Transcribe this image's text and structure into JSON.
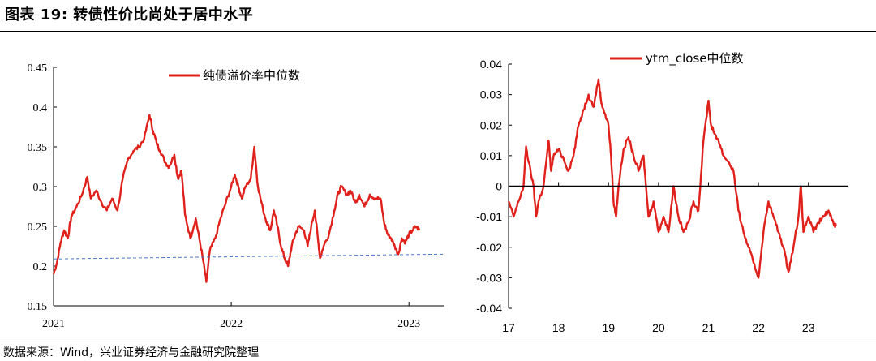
{
  "figure": {
    "title": "图表 19:  转债性价比尚处于居中水平",
    "source": "数据来源：Wind，兴业证券经济与金融研究院整理"
  },
  "chart_data": [
    {
      "type": "line",
      "title": "",
      "xlabel": "",
      "ylabel": "",
      "ylim": [
        0.15,
        0.45
      ],
      "yticks": [
        "0.15",
        "0.2",
        "0.25",
        "0.3",
        "0.35",
        "0.4",
        "0.45"
      ],
      "xlim": [
        2021.0,
        2023.2
      ],
      "xticks": [
        "2021",
        "2022",
        "2023"
      ],
      "legend": "top-right",
      "series": [
        {
          "name": "纯债溢价率中位数",
          "color": "#e0201b",
          "points": [
            [
              2021.0,
              0.19
            ],
            [
              2021.02,
              0.205
            ],
            [
              2021.04,
              0.23
            ],
            [
              2021.06,
              0.245
            ],
            [
              2021.08,
              0.235
            ],
            [
              2021.1,
              0.262
            ],
            [
              2021.13,
              0.275
            ],
            [
              2021.16,
              0.29
            ],
            [
              2021.19,
              0.312
            ],
            [
              2021.21,
              0.285
            ],
            [
              2021.24,
              0.295
            ],
            [
              2021.27,
              0.28
            ],
            [
              2021.3,
              0.27
            ],
            [
              2021.33,
              0.285
            ],
            [
              2021.36,
              0.27
            ],
            [
              2021.39,
              0.31
            ],
            [
              2021.42,
              0.335
            ],
            [
              2021.45,
              0.345
            ],
            [
              2021.48,
              0.35
            ],
            [
              2021.51,
              0.36
            ],
            [
              2021.54,
              0.39
            ],
            [
              2021.56,
              0.37
            ],
            [
              2021.58,
              0.355
            ],
            [
              2021.6,
              0.345
            ],
            [
              2021.63,
              0.33
            ],
            [
              2021.65,
              0.325
            ],
            [
              2021.68,
              0.34
            ],
            [
              2021.7,
              0.31
            ],
            [
              2021.72,
              0.32
            ],
            [
              2021.74,
              0.265
            ],
            [
              2021.77,
              0.235
            ],
            [
              2021.8,
              0.26
            ],
            [
              2021.82,
              0.235
            ],
            [
              2021.84,
              0.21
            ],
            [
              2021.86,
              0.18
            ],
            [
              2021.88,
              0.22
            ],
            [
              2021.91,
              0.235
            ],
            [
              2021.94,
              0.26
            ],
            [
              2021.97,
              0.28
            ],
            [
              2022.0,
              0.3
            ],
            [
              2022.02,
              0.315
            ],
            [
              2022.04,
              0.3
            ],
            [
              2022.06,
              0.285
            ],
            [
              2022.08,
              0.3
            ],
            [
              2022.11,
              0.31
            ],
            [
              2022.13,
              0.35
            ],
            [
              2022.15,
              0.3
            ],
            [
              2022.18,
              0.27
            ],
            [
              2022.2,
              0.255
            ],
            [
              2022.22,
              0.245
            ],
            [
              2022.24,
              0.27
            ],
            [
              2022.26,
              0.25
            ],
            [
              2022.28,
              0.225
            ],
            [
              2022.3,
              0.21
            ],
            [
              2022.32,
              0.2
            ],
            [
              2022.34,
              0.225
            ],
            [
              2022.36,
              0.24
            ],
            [
              2022.38,
              0.25
            ],
            [
              2022.41,
              0.245
            ],
            [
              2022.43,
              0.225
            ],
            [
              2022.45,
              0.25
            ],
            [
              2022.47,
              0.27
            ],
            [
              2022.49,
              0.23
            ],
            [
              2022.5,
              0.21
            ],
            [
              2022.52,
              0.225
            ],
            [
              2022.55,
              0.24
            ],
            [
              2022.58,
              0.27
            ],
            [
              2022.6,
              0.29
            ],
            [
              2022.62,
              0.3
            ],
            [
              2022.65,
              0.29
            ],
            [
              2022.67,
              0.295
            ],
            [
              2022.7,
              0.28
            ],
            [
              2022.72,
              0.29
            ],
            [
              2022.75,
              0.275
            ],
            [
              2022.78,
              0.29
            ],
            [
              2022.81,
              0.285
            ],
            [
              2022.84,
              0.285
            ],
            [
              2022.86,
              0.255
            ],
            [
              2022.88,
              0.24
            ],
            [
              2022.9,
              0.235
            ],
            [
              2022.92,
              0.225
            ],
            [
              2022.94,
              0.215
            ],
            [
              2022.96,
              0.235
            ],
            [
              2022.98,
              0.23
            ],
            [
              2023.0,
              0.24
            ],
            [
              2023.02,
              0.245
            ],
            [
              2023.04,
              0.25
            ],
            [
              2023.06,
              0.245
            ]
          ]
        },
        {
          "name": "",
          "color": "#4a78c8",
          "style": "dashed",
          "points": [
            [
              2021.0,
              0.209
            ],
            [
              2023.2,
              0.215
            ]
          ]
        }
      ]
    },
    {
      "type": "line",
      "title": "",
      "xlabel": "",
      "ylabel": "",
      "ylim": [
        -0.04,
        0.04
      ],
      "yticks": [
        "-0.04",
        "-0.03",
        "-0.02",
        "-0.01",
        "0",
        "0.01",
        "0.02",
        "0.03",
        "0.04"
      ],
      "xlim": [
        17.0,
        23.8
      ],
      "xticks": [
        "17",
        "18",
        "19",
        "20",
        "21",
        "22",
        "23"
      ],
      "legend": "top-center",
      "series": [
        {
          "name": "ytm_close中位数",
          "color": "#e0201b",
          "points": [
            [
              17.0,
              -0.005
            ],
            [
              17.1,
              -0.01
            ],
            [
              17.2,
              -0.005
            ],
            [
              17.3,
              0.0
            ],
            [
              17.35,
              0.013
            ],
            [
              17.4,
              0.008
            ],
            [
              17.5,
              0.0
            ],
            [
              17.55,
              -0.01
            ],
            [
              17.6,
              -0.005
            ],
            [
              17.7,
              0.0
            ],
            [
              17.8,
              0.015
            ],
            [
              17.85,
              0.005
            ],
            [
              17.9,
              0.01
            ],
            [
              18.0,
              0.012
            ],
            [
              18.1,
              0.009
            ],
            [
              18.2,
              0.005
            ],
            [
              18.3,
              0.01
            ],
            [
              18.4,
              0.02
            ],
            [
              18.5,
              0.025
            ],
            [
              18.6,
              0.03
            ],
            [
              18.7,
              0.026
            ],
            [
              18.8,
              0.035
            ],
            [
              18.85,
              0.028
            ],
            [
              18.9,
              0.025
            ],
            [
              19.0,
              0.02
            ],
            [
              19.05,
              0.01
            ],
            [
              19.1,
              -0.005
            ],
            [
              19.15,
              -0.01
            ],
            [
              19.2,
              0.0
            ],
            [
              19.3,
              0.012
            ],
            [
              19.4,
              0.016
            ],
            [
              19.5,
              0.01
            ],
            [
              19.6,
              0.005
            ],
            [
              19.7,
              0.01
            ],
            [
              19.8,
              -0.01
            ],
            [
              19.9,
              -0.005
            ],
            [
              20.0,
              -0.015
            ],
            [
              20.1,
              -0.01
            ],
            [
              20.2,
              -0.015
            ],
            [
              20.3,
              0.0
            ],
            [
              20.4,
              -0.01
            ],
            [
              20.5,
              -0.015
            ],
            [
              20.6,
              -0.012
            ],
            [
              20.7,
              -0.005
            ],
            [
              20.8,
              -0.008
            ],
            [
              20.9,
              0.015
            ],
            [
              21.0,
              0.028
            ],
            [
              21.05,
              0.02
            ],
            [
              21.1,
              0.018
            ],
            [
              21.2,
              0.015
            ],
            [
              21.3,
              0.01
            ],
            [
              21.4,
              0.008
            ],
            [
              21.5,
              0.005
            ],
            [
              21.6,
              -0.008
            ],
            [
              21.7,
              -0.015
            ],
            [
              21.8,
              -0.02
            ],
            [
              21.9,
              -0.025
            ],
            [
              22.0,
              -0.03
            ],
            [
              22.1,
              -0.015
            ],
            [
              22.2,
              -0.005
            ],
            [
              22.3,
              -0.01
            ],
            [
              22.4,
              -0.015
            ],
            [
              22.5,
              -0.02
            ],
            [
              22.6,
              -0.028
            ],
            [
              22.7,
              -0.02
            ],
            [
              22.8,
              -0.01
            ],
            [
              22.85,
              0.0
            ],
            [
              22.9,
              -0.015
            ],
            [
              23.0,
              -0.01
            ],
            [
              23.1,
              -0.015
            ],
            [
              23.2,
              -0.012
            ],
            [
              23.3,
              -0.01
            ],
            [
              23.4,
              -0.008
            ],
            [
              23.5,
              -0.012
            ],
            [
              23.55,
              -0.013
            ]
          ]
        },
        {
          "name": "",
          "color": "#000000",
          "points": [
            [
              17.0,
              0.0
            ],
            [
              23.8,
              0.0
            ]
          ]
        }
      ]
    }
  ]
}
